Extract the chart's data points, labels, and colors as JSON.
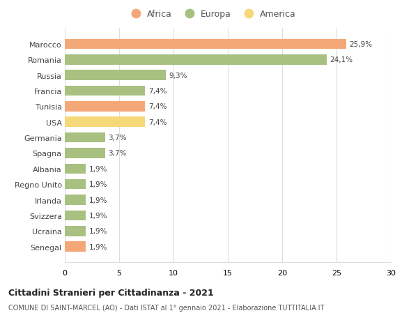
{
  "categories": [
    "Marocco",
    "Romania",
    "Russia",
    "Francia",
    "Tunisia",
    "USA",
    "Germania",
    "Spagna",
    "Albania",
    "Regno Unito",
    "Irlanda",
    "Svizzera",
    "Ucraina",
    "Senegal"
  ],
  "values": [
    25.9,
    24.1,
    9.3,
    7.4,
    7.4,
    7.4,
    3.7,
    3.7,
    1.9,
    1.9,
    1.9,
    1.9,
    1.9,
    1.9
  ],
  "labels": [
    "25,9%",
    "24,1%",
    "9,3%",
    "7,4%",
    "7,4%",
    "7,4%",
    "3,7%",
    "3,7%",
    "1,9%",
    "1,9%",
    "1,9%",
    "1,9%",
    "1,9%",
    "1,9%"
  ],
  "continents": [
    "Africa",
    "Europa",
    "Europa",
    "Europa",
    "Africa",
    "America",
    "Europa",
    "Europa",
    "Europa",
    "Europa",
    "Europa",
    "Europa",
    "Europa",
    "Africa"
  ],
  "colors": {
    "Africa": "#F4A878",
    "Europa": "#A8C080",
    "America": "#F5D878"
  },
  "legend_order": [
    "Africa",
    "Europa",
    "America"
  ],
  "title1": "Cittadini Stranieri per Cittadinanza - 2021",
  "title2": "COMUNE DI SAINT-MARCEL (AO) - Dati ISTAT al 1° gennaio 2021 - Elaborazione TUTTITALIA.IT",
  "xlim": [
    0,
    30
  ],
  "xticks": [
    0,
    5,
    10,
    15,
    20,
    25,
    30
  ],
  "background_color": "#ffffff",
  "grid_color": "#dddddd"
}
